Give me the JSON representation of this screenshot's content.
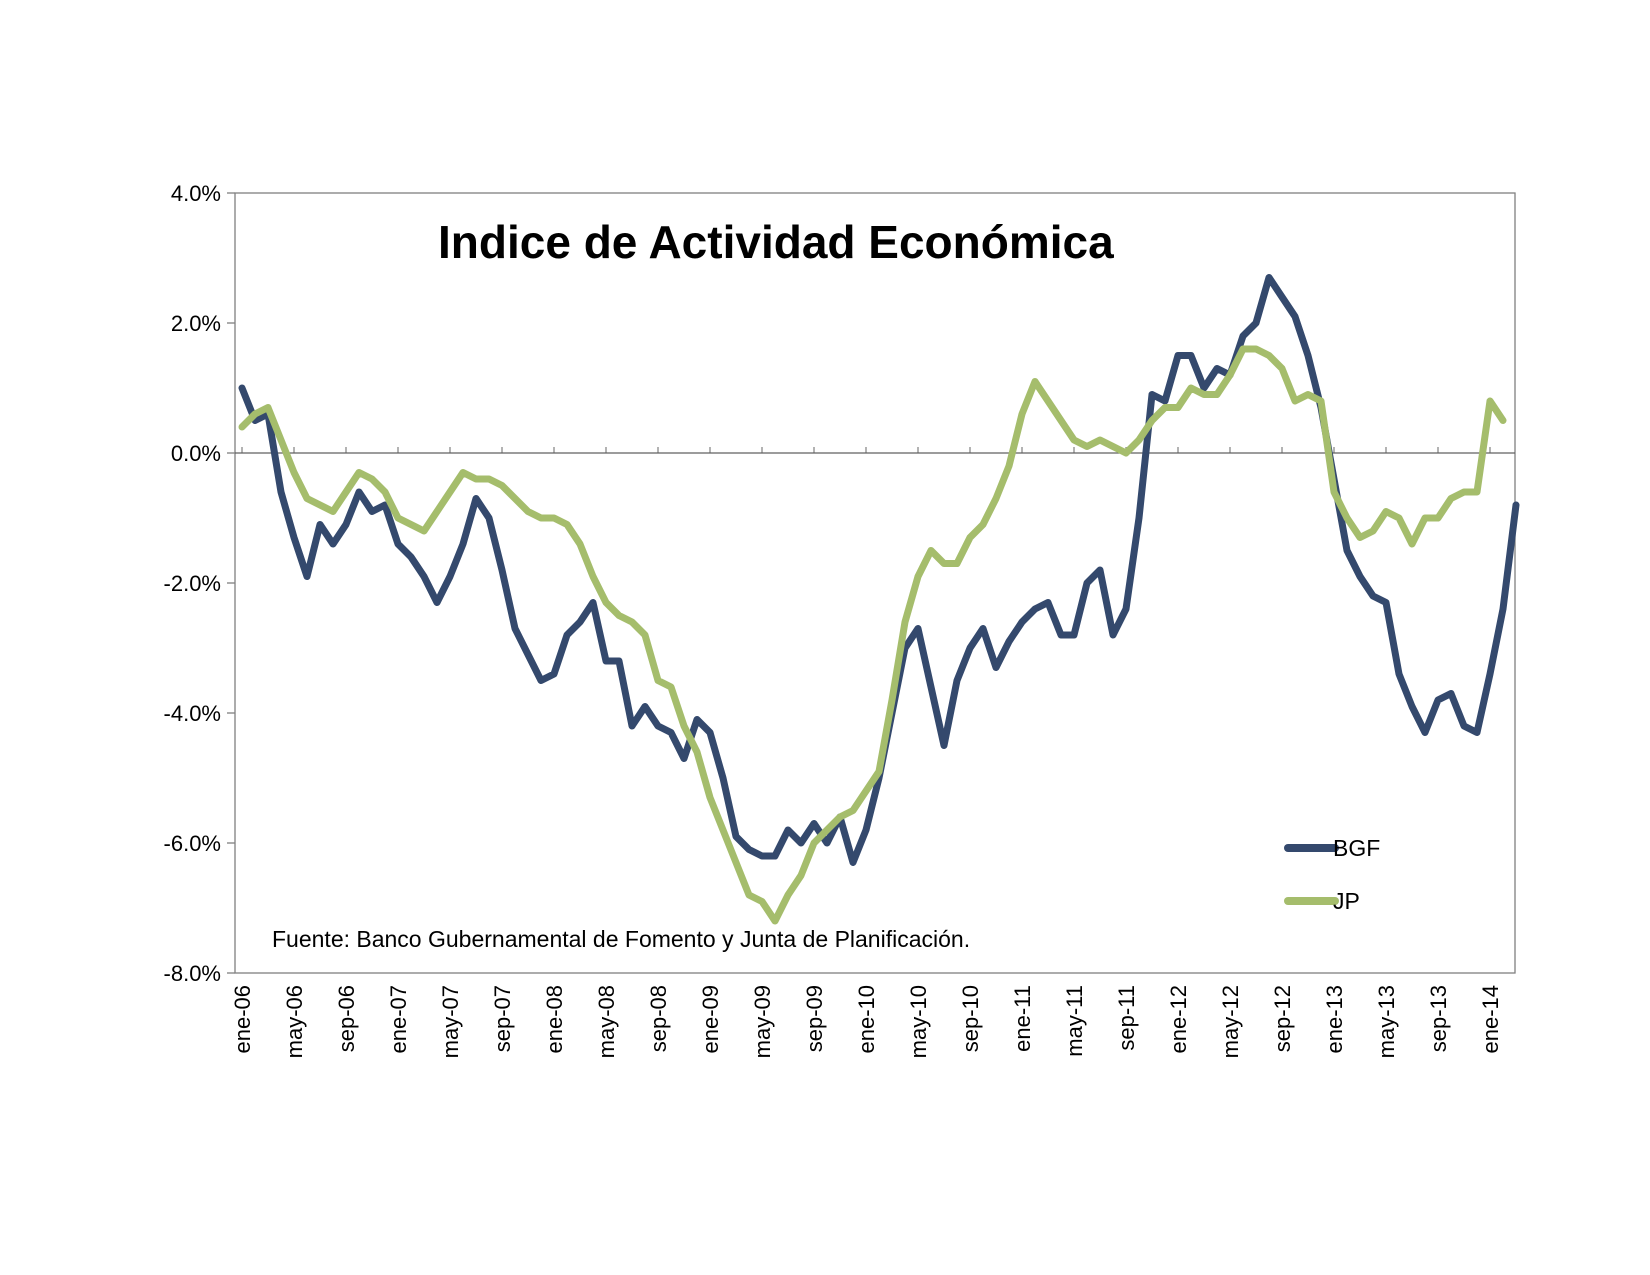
{
  "chart_data": {
    "type": "line",
    "title": "Indice de Actividad Económica",
    "note": "Fuente: Banco Gubernamental de Fomento y Junta de Planificación.",
    "xlabel": "",
    "ylabel": "",
    "ylim": [
      -8.0,
      4.0
    ],
    "y_ticks": [
      "4.0%",
      "2.0%",
      "0.0%",
      "-2.0%",
      "-4.0%",
      "-6.0%",
      "-8.0%"
    ],
    "y_tick_values": [
      4,
      2,
      0,
      -2,
      -4,
      -6,
      -8
    ],
    "x_tick_labels": [
      "ene-06",
      "may-06",
      "sep-06",
      "ene-07",
      "may-07",
      "sep-07",
      "ene-08",
      "may-08",
      "sep-08",
      "ene-09",
      "may-09",
      "sep-09",
      "ene-10",
      "may-10",
      "sep-10",
      "ene-11",
      "may-11",
      "sep-11",
      "ene-12",
      "may-12",
      "sep-12",
      "ene-13",
      "may-13",
      "sep-13",
      "ene-14"
    ],
    "x_start": "2006-01",
    "grid": false,
    "legend_position": "bottom-right",
    "colors": {
      "BGF": "#34496d",
      "JP": "#a5bd6c"
    },
    "series": [
      {
        "name": "BGF",
        "color": "#34496d",
        "values": [
          1.0,
          0.5,
          0.6,
          -0.6,
          -1.3,
          -1.9,
          -1.1,
          -1.4,
          -1.1,
          -0.6,
          -0.9,
          -0.8,
          -1.4,
          -1.6,
          -1.9,
          -2.3,
          -1.9,
          -1.4,
          -0.7,
          -1.0,
          -1.8,
          -2.7,
          -3.1,
          -3.5,
          -3.4,
          -2.8,
          -2.6,
          -2.3,
          -3.2,
          -3.2,
          -4.2,
          -3.9,
          -4.2,
          -4.3,
          -4.7,
          -4.1,
          -4.3,
          -5.0,
          -5.9,
          -6.1,
          -6.2,
          -6.2,
          -5.8,
          -6.0,
          -5.7,
          -6.0,
          -5.6,
          -6.3,
          -5.8,
          -5.0,
          -4.0,
          -3.0,
          -2.7,
          -3.6,
          -4.5,
          -3.5,
          -3.0,
          -2.7,
          -3.3,
          -2.9,
          -2.6,
          -2.4,
          -2.3,
          -2.8,
          -2.8,
          -2.0,
          -1.8,
          -2.8,
          -2.4,
          -1.0,
          0.9,
          0.8,
          1.5,
          1.5,
          1.0,
          1.3,
          1.2,
          1.8,
          2.0,
          2.7,
          2.4,
          2.1,
          1.5,
          0.7,
          -0.4,
          -1.5,
          -1.9,
          -2.2,
          -2.3,
          -3.4,
          -3.9,
          -4.3,
          -3.8,
          -3.7,
          -4.2,
          -4.3,
          -3.4,
          -2.4,
          -0.8
        ]
      },
      {
        "name": "JP",
        "color": "#a5bd6c",
        "values": [
          0.4,
          0.6,
          0.7,
          0.2,
          -0.3,
          -0.7,
          -0.8,
          -0.9,
          -0.6,
          -0.3,
          -0.4,
          -0.6,
          -1.0,
          -1.1,
          -1.2,
          -0.9,
          -0.6,
          -0.3,
          -0.4,
          -0.4,
          -0.5,
          -0.7,
          -0.9,
          -1.0,
          -1.0,
          -1.1,
          -1.4,
          -1.9,
          -2.3,
          -2.5,
          -2.6,
          -2.8,
          -3.5,
          -3.6,
          -4.2,
          -4.6,
          -5.3,
          -5.8,
          -6.3,
          -6.8,
          -6.9,
          -7.2,
          -6.8,
          -6.5,
          -6.0,
          -5.8,
          -5.6,
          -5.5,
          -5.2,
          -4.9,
          -3.8,
          -2.6,
          -1.9,
          -1.5,
          -1.7,
          -1.7,
          -1.3,
          -1.1,
          -0.7,
          -0.2,
          0.6,
          1.1,
          0.8,
          0.5,
          0.2,
          0.1,
          0.2,
          0.1,
          0.0,
          0.2,
          0.5,
          0.7,
          0.7,
          1.0,
          0.9,
          0.9,
          1.2,
          1.6,
          1.6,
          1.5,
          1.3,
          0.8,
          0.9,
          0.8,
          -0.6,
          -1.0,
          -1.3,
          -1.2,
          -0.9,
          -1.0,
          -1.4,
          -1.0,
          -1.0,
          -0.7,
          -0.6,
          -0.6,
          0.8,
          0.5
        ]
      }
    ]
  }
}
